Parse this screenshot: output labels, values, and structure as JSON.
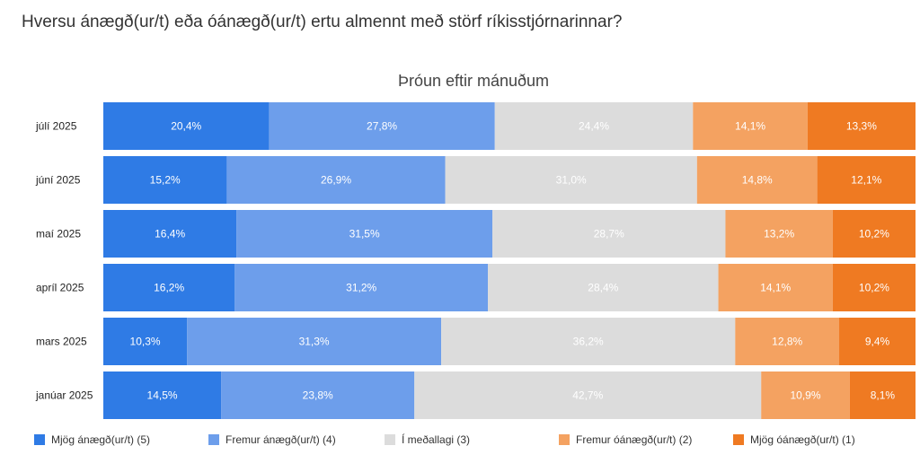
{
  "question": "Hversu ánægð(ur/t) eða óánægð(ur/t) ertu almennt með störf ríkisstjórnarinnar?",
  "chart_data": {
    "type": "bar",
    "orientation": "horizontal",
    "stacked": "percent",
    "title": "Þróun eftir mánuðum",
    "categories": [
      "júlí 2025",
      "júní 2025",
      "maí 2025",
      "apríl 2025",
      "mars 2025",
      "janúar 2025"
    ],
    "series": [
      {
        "name": "Mjög ánægð(ur/t) (5)",
        "color": "#2f7be5",
        "label_color": "#ffffff",
        "values": [
          20.4,
          15.2,
          16.4,
          16.2,
          10.3,
          14.5
        ]
      },
      {
        "name": "Fremur ánægð(ur/t) (4)",
        "color": "#6d9eeb",
        "label_color": "#ffffff",
        "values": [
          27.8,
          26.9,
          31.5,
          31.2,
          31.3,
          23.8
        ]
      },
      {
        "name": "Í meðallagi (3)",
        "color": "#dcdcdc",
        "label_color": "#ffffff",
        "values": [
          24.4,
          31.0,
          28.7,
          28.4,
          36.2,
          42.7
        ]
      },
      {
        "name": "Fremur óánægð(ur/t) (2)",
        "color": "#f4a261",
        "label_color": "#ffffff",
        "values": [
          14.1,
          14.8,
          13.2,
          14.1,
          12.8,
          10.9
        ]
      },
      {
        "name": "Mjög óánægð(ur/t) (1)",
        "color": "#ef7a22",
        "label_color": "#ffffff",
        "values": [
          13.3,
          12.1,
          10.2,
          10.2,
          9.4,
          8.1
        ]
      }
    ],
    "value_labels": [
      [
        "20,4%",
        "27,8%",
        "24,4%",
        "14,1%",
        "13,3%"
      ],
      [
        "15,2%",
        "26,9%",
        "31,0%",
        "14,8%",
        "12,1%"
      ],
      [
        "16,4%",
        "31,5%",
        "28,7%",
        "13,2%",
        "10,2%"
      ],
      [
        "16,2%",
        "31,2%",
        "28,4%",
        "14,1%",
        "10,2%"
      ],
      [
        "10,3%",
        "31,3%",
        "36,2%",
        "12,8%",
        "9,4%"
      ],
      [
        "14,5%",
        "23,8%",
        "42,7%",
        "10,9%",
        "8,1%"
      ]
    ],
    "legend_position": "bottom",
    "grid": false
  }
}
